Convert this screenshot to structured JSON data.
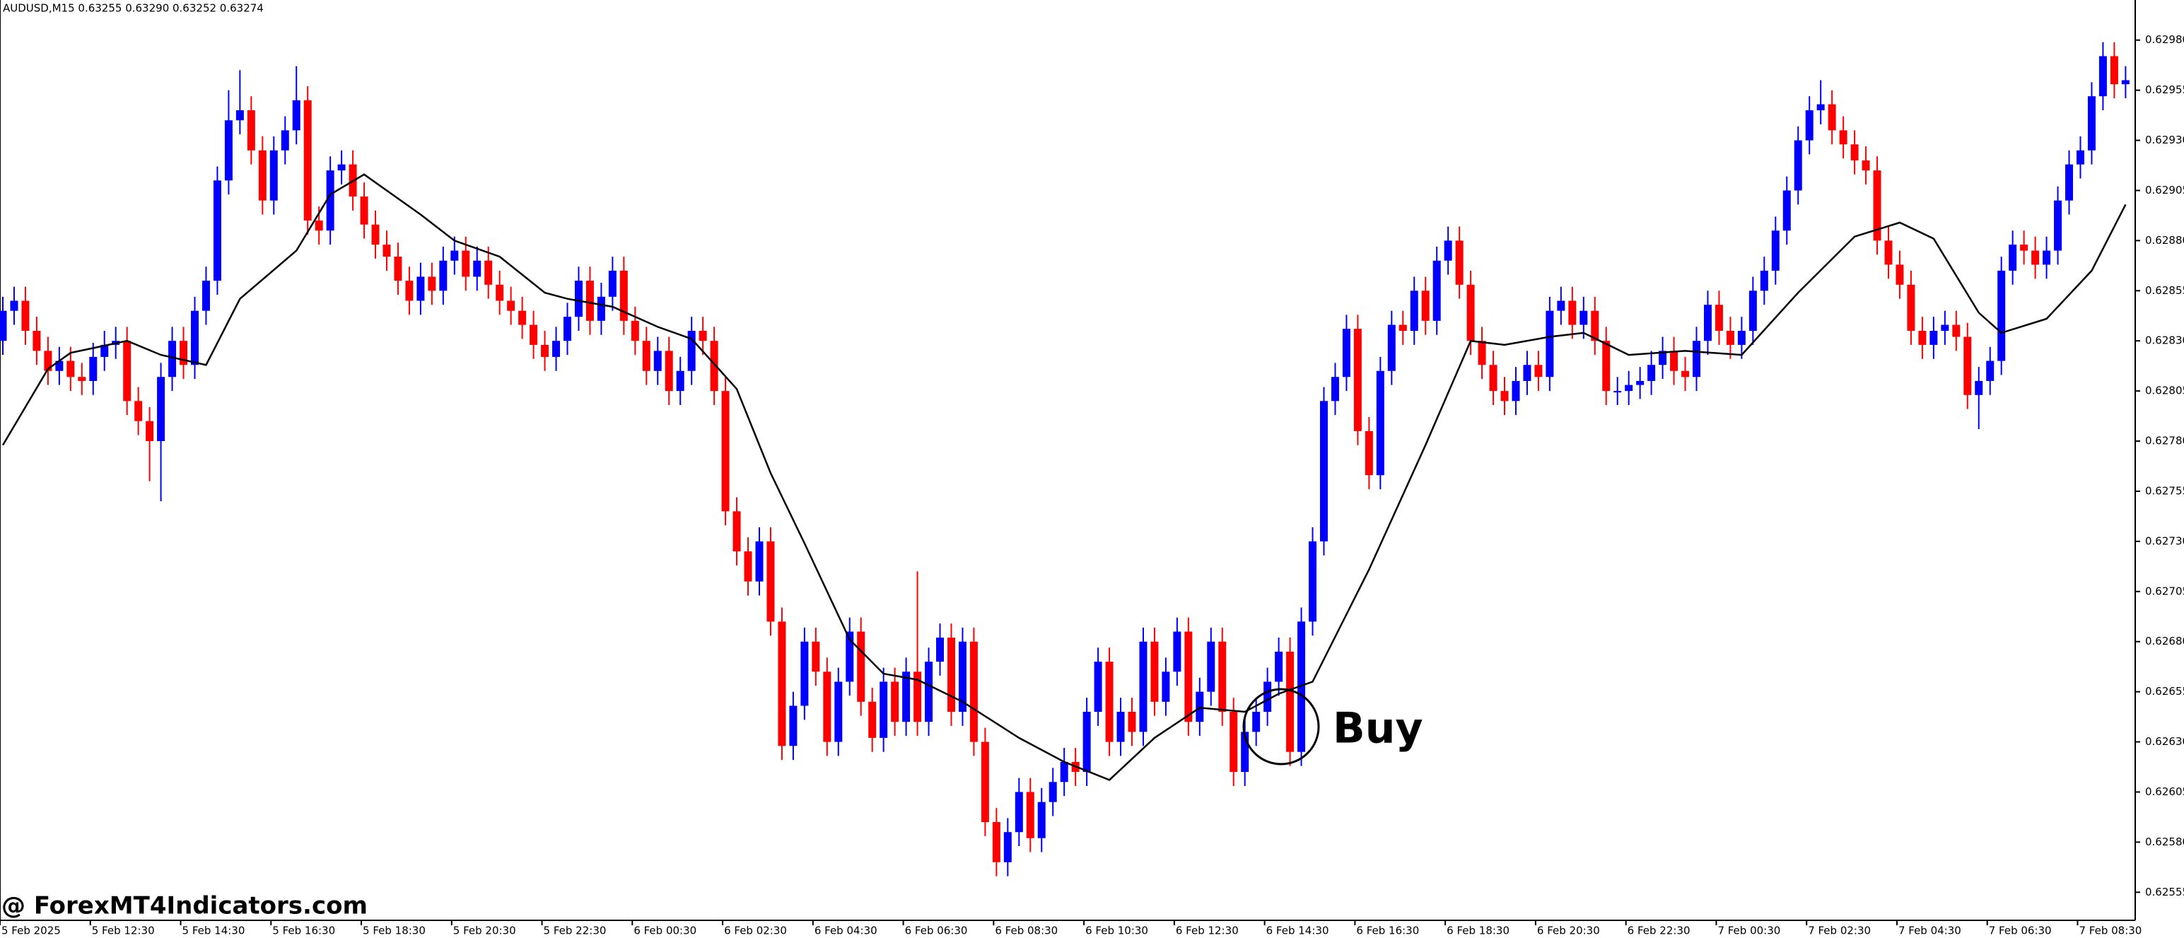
{
  "chart_data": {
    "type": "candlestick",
    "title": "AUDUSD,M15  0.63255 0.63290 0.63252 0.63274",
    "annotation": "Buy",
    "watermark": "@ ForexMT4Indicators.com",
    "up_color": "#0000ff",
    "down_color": "#ff0000",
    "ylim": [
      0.62541,
      0.63
    ],
    "yticks": [
      {
        "value": 0.6298,
        "label": "0.62980"
      },
      {
        "value": 0.62955,
        "label": "0.62955"
      },
      {
        "value": 0.6293,
        "label": "0.62930"
      },
      {
        "value": 0.62905,
        "label": "0.62905"
      },
      {
        "value": 0.6288,
        "label": "0.62880"
      },
      {
        "value": 0.62855,
        "label": "0.62855"
      },
      {
        "value": 0.6283,
        "label": "0.62830"
      },
      {
        "value": 0.62805,
        "label": "0.62805"
      },
      {
        "value": 0.6278,
        "label": "0.62780"
      },
      {
        "value": 0.62755,
        "label": "0.62755"
      },
      {
        "value": 0.6273,
        "label": "0.62730"
      },
      {
        "value": 0.62705,
        "label": "0.62705"
      },
      {
        "value": 0.6268,
        "label": "0.62680"
      },
      {
        "value": 0.62655,
        "label": "0.62655"
      },
      {
        "value": 0.6263,
        "label": "0.62630"
      },
      {
        "value": 0.62605,
        "label": "0.62605"
      },
      {
        "value": 0.6258,
        "label": "0.62580"
      },
      {
        "value": 0.62555,
        "label": "0.62555"
      }
    ],
    "categories": [
      "5 Feb 2025",
      null,
      null,
      null,
      null,
      null,
      null,
      null,
      "5 Feb 12:30",
      null,
      null,
      null,
      null,
      null,
      null,
      null,
      "5 Feb 14:30",
      null,
      null,
      null,
      null,
      null,
      null,
      null,
      "5 Feb 16:30",
      null,
      null,
      null,
      null,
      null,
      null,
      null,
      "5 Feb 18:30",
      null,
      null,
      null,
      null,
      null,
      null,
      null,
      "5 Feb 20:30",
      null,
      null,
      null,
      null,
      null,
      null,
      null,
      "5 Feb 22:30",
      null,
      null,
      null,
      null,
      null,
      null,
      null,
      "6 Feb 00:30",
      null,
      null,
      null,
      null,
      null,
      null,
      null,
      "6 Feb 02:30",
      null,
      null,
      null,
      null,
      null,
      null,
      null,
      "6 Feb 04:30",
      null,
      null,
      null,
      null,
      null,
      null,
      null,
      "6 Feb 06:30",
      null,
      null,
      null,
      null,
      null,
      null,
      null,
      "6 Feb 08:30",
      null,
      null,
      null,
      null,
      null,
      null,
      null,
      "6 Feb 10:30",
      null,
      null,
      null,
      null,
      null,
      null,
      null,
      "6 Feb 12:30",
      null,
      null,
      null,
      null,
      null,
      null,
      null,
      "6 Feb 14:30",
      null,
      null,
      null,
      null,
      null,
      null,
      null,
      "6 Feb 16:30",
      null,
      null,
      null,
      null,
      null,
      null,
      null,
      "6 Feb 18:30",
      null,
      null,
      null,
      null,
      null,
      null,
      null,
      "6 Feb 20:30",
      null,
      null,
      null,
      null,
      null,
      null,
      null,
      "6 Feb 22:30",
      null,
      null,
      null,
      null,
      null,
      null,
      null,
      "7 Feb 00:30",
      null,
      null,
      null,
      null,
      null,
      null,
      null,
      "7 Feb 02:30",
      null,
      null,
      null,
      null,
      null,
      null,
      null,
      "7 Feb 04:30",
      null,
      null,
      null,
      null,
      null,
      null,
      null,
      "7 Feb 06:30",
      null,
      null,
      null,
      null,
      null,
      null,
      null,
      "7 Feb 08:30",
      null,
      null,
      null,
      null
    ],
    "open": [
      0.6283,
      0.62845,
      0.6285,
      0.62835,
      0.62825,
      0.62815,
      0.6282,
      0.62812,
      0.6281,
      0.62822,
      0.62828,
      0.6283,
      0.628,
      0.6279,
      0.6278,
      0.62812,
      0.6283,
      0.62818,
      0.62845,
      0.6286,
      0.6291,
      0.6294,
      0.62945,
      0.62925,
      0.629,
      0.62925,
      0.62935,
      0.6295,
      0.6289,
      0.62885,
      0.62915,
      0.62918,
      0.62902,
      0.62888,
      0.62878,
      0.62872,
      0.6286,
      0.6285,
      0.62862,
      0.62855,
      0.6287,
      0.62875,
      0.62862,
      0.6287,
      0.62858,
      0.6285,
      0.62845,
      0.62838,
      0.62828,
      0.62822,
      0.6283,
      0.62842,
      0.6286,
      0.6284,
      0.62852,
      0.62865,
      0.6284,
      0.6283,
      0.62815,
      0.62825,
      0.62805,
      0.62815,
      0.62835,
      0.6283,
      0.62805,
      0.62745,
      0.62725,
      0.6271,
      0.6273,
      0.6269,
      0.62628,
      0.62648,
      0.6268,
      0.62665,
      0.6263,
      0.6266,
      0.62685,
      0.6265,
      0.62632,
      0.6266,
      0.6264,
      0.62665,
      0.6264,
      0.6267,
      0.62682,
      0.62645,
      0.6268,
      0.6263,
      0.6259,
      0.6257,
      0.62585,
      0.62605,
      0.62582,
      0.626,
      0.6261,
      0.6262,
      0.62615,
      0.62645,
      0.6267,
      0.6263,
      0.62645,
      0.62635,
      0.6268,
      0.6265,
      0.62665,
      0.62685,
      0.6264,
      0.62655,
      0.6268,
      0.62645,
      0.62615,
      0.62635,
      0.62645,
      0.6266,
      0.62675,
      0.62625,
      0.6269,
      0.6273,
      0.628,
      0.62812,
      0.62836,
      0.62785,
      0.62763,
      0.62815,
      0.62838,
      0.62835,
      0.62855,
      0.6284,
      0.6287,
      0.6288,
      0.62858,
      0.6283,
      0.62818,
      0.62805,
      0.628,
      0.6281,
      0.62818,
      0.62812,
      0.62845,
      0.6285,
      0.62838,
      0.62845,
      0.6283,
      0.62805,
      0.62805,
      0.62808,
      0.6281,
      0.62818,
      0.62825,
      0.62815,
      0.62812,
      0.6283,
      0.62848,
      0.62835,
      0.62828,
      0.62835,
      0.62855,
      0.62865,
      0.62885,
      0.62905,
      0.6293,
      0.62945,
      0.62948,
      0.62935,
      0.62928,
      0.6292,
      0.62915,
      0.6288,
      0.62868,
      0.62858,
      0.62835,
      0.62828,
      0.62835,
      0.62838,
      0.62832,
      0.62803,
      0.6281,
      0.6282,
      0.62865,
      0.62878,
      0.62875,
      0.62868,
      0.62875,
      0.629,
      0.62918,
      0.62925,
      0.62952,
      0.62972,
      0.62958
    ],
    "high": [
      0.62852,
      0.62857,
      0.62857,
      0.62842,
      0.62832,
      0.62827,
      0.62827,
      0.62819,
      0.62829,
      0.62835,
      0.62837,
      0.62837,
      0.62807,
      0.62797,
      0.62819,
      0.62837,
      0.62837,
      0.62852,
      0.62867,
      0.62917,
      0.62955,
      0.62965,
      0.62952,
      0.62932,
      0.62932,
      0.62942,
      0.62967,
      0.62957,
      0.62897,
      0.62922,
      0.62925,
      0.62925,
      0.62909,
      0.62895,
      0.62885,
      0.62879,
      0.62867,
      0.62869,
      0.62869,
      0.62877,
      0.62882,
      0.62882,
      0.62877,
      0.62877,
      0.62865,
      0.62857,
      0.62852,
      0.62845,
      0.62835,
      0.62837,
      0.62849,
      0.62867,
      0.62867,
      0.62859,
      0.62872,
      0.62872,
      0.62847,
      0.62837,
      0.62832,
      0.62832,
      0.62822,
      0.62842,
      0.62842,
      0.62837,
      0.62812,
      0.62752,
      0.62732,
      0.62737,
      0.62737,
      0.62697,
      0.62655,
      0.62687,
      0.62687,
      0.62672,
      0.62667,
      0.62692,
      0.62692,
      0.62657,
      0.62667,
      0.62667,
      0.62672,
      0.62715,
      0.62677,
      0.62689,
      0.62689,
      0.62687,
      0.62687,
      0.62637,
      0.62597,
      0.62592,
      0.62612,
      0.62612,
      0.62607,
      0.62617,
      0.62627,
      0.62627,
      0.62652,
      0.62677,
      0.62677,
      0.62652,
      0.62652,
      0.62687,
      0.62687,
      0.62672,
      0.62692,
      0.62692,
      0.62662,
      0.62687,
      0.62687,
      0.62652,
      0.62642,
      0.62652,
      0.62667,
      0.62682,
      0.62682,
      0.62697,
      0.62737,
      0.62807,
      0.62819,
      0.62843,
      0.62843,
      0.62792,
      0.62822,
      0.62845,
      0.62845,
      0.62862,
      0.62862,
      0.62877,
      0.62887,
      0.62887,
      0.62865,
      0.62837,
      0.62825,
      0.62812,
      0.62817,
      0.62825,
      0.62825,
      0.62852,
      0.62857,
      0.62857,
      0.62852,
      0.62852,
      0.62837,
      0.62812,
      0.62815,
      0.62817,
      0.62825,
      0.62832,
      0.62832,
      0.62822,
      0.62837,
      0.62855,
      0.62855,
      0.62842,
      0.62842,
      0.62862,
      0.62872,
      0.62892,
      0.62912,
      0.62937,
      0.62952,
      0.6296,
      0.62955,
      0.62942,
      0.62935,
      0.62927,
      0.62922,
      0.62887,
      0.62875,
      0.62865,
      0.62842,
      0.62842,
      0.62845,
      0.62845,
      0.62839,
      0.62817,
      0.62827,
      0.62872,
      0.62885,
      0.62885,
      0.62882,
      0.62882,
      0.62907,
      0.62925,
      0.62932,
      0.62959,
      0.62979,
      0.62979,
      0.62967
    ],
    "low": [
      0.62823,
      0.62838,
      0.62828,
      0.62818,
      0.62808,
      0.62808,
      0.62805,
      0.62803,
      0.62803,
      0.62815,
      0.62821,
      0.62793,
      0.62783,
      0.6276,
      0.6275,
      0.62805,
      0.62811,
      0.62811,
      0.62838,
      0.62853,
      0.62903,
      0.62933,
      0.62918,
      0.62893,
      0.62893,
      0.62918,
      0.62928,
      0.62883,
      0.62878,
      0.62878,
      0.62908,
      0.62895,
      0.62881,
      0.62871,
      0.62865,
      0.62853,
      0.62843,
      0.62843,
      0.62848,
      0.62848,
      0.62863,
      0.62855,
      0.62855,
      0.62851,
      0.62843,
      0.62838,
      0.62831,
      0.62821,
      0.62815,
      0.62815,
      0.62823,
      0.62835,
      0.62833,
      0.62833,
      0.62845,
      0.62833,
      0.62823,
      0.62808,
      0.62808,
      0.62798,
      0.62798,
      0.62808,
      0.62823,
      0.62798,
      0.62738,
      0.62718,
      0.62703,
      0.62703,
      0.62683,
      0.62621,
      0.62621,
      0.62641,
      0.62658,
      0.62623,
      0.62623,
      0.62653,
      0.62643,
      0.62625,
      0.62625,
      0.62633,
      0.62633,
      0.62633,
      0.62633,
      0.62663,
      0.62638,
      0.62638,
      0.62623,
      0.62583,
      0.62563,
      0.62563,
      0.62578,
      0.62575,
      0.62575,
      0.62593,
      0.62603,
      0.62608,
      0.62608,
      0.62638,
      0.62623,
      0.62623,
      0.62628,
      0.62628,
      0.62643,
      0.62643,
      0.62658,
      0.62633,
      0.62633,
      0.62648,
      0.62638,
      0.62608,
      0.62608,
      0.62628,
      0.62638,
      0.62653,
      0.62618,
      0.62618,
      0.62683,
      0.62723,
      0.62793,
      0.62805,
      0.62778,
      0.62756,
      0.62756,
      0.62808,
      0.62828,
      0.62828,
      0.62833,
      0.62833,
      0.62863,
      0.62851,
      0.62823,
      0.62811,
      0.62798,
      0.62793,
      0.62793,
      0.62803,
      0.62805,
      0.62805,
      0.62838,
      0.62831,
      0.62831,
      0.62823,
      0.62798,
      0.62798,
      0.62798,
      0.62801,
      0.62803,
      0.62811,
      0.62808,
      0.62805,
      0.62805,
      0.62823,
      0.62828,
      0.62821,
      0.62821,
      0.62828,
      0.62848,
      0.62858,
      0.62878,
      0.62898,
      0.62923,
      0.62938,
      0.62928,
      0.62921,
      0.62913,
      0.62908,
      0.62873,
      0.62861,
      0.62851,
      0.62828,
      0.62821,
      0.62821,
      0.62828,
      0.62825,
      0.62796,
      0.62786,
      0.62803,
      0.62813,
      0.62858,
      0.62868,
      0.62861,
      0.62861,
      0.62868,
      0.62893,
      0.62911,
      0.62918,
      0.62945,
      0.62951,
      0.62951
    ],
    "close": [
      0.62845,
      0.6285,
      0.62835,
      0.62825,
      0.62815,
      0.6282,
      0.62812,
      0.6281,
      0.62822,
      0.62828,
      0.6283,
      0.628,
      0.6279,
      0.6278,
      0.62812,
      0.6283,
      0.62818,
      0.62845,
      0.6286,
      0.6291,
      0.6294,
      0.62945,
      0.62925,
      0.629,
      0.62925,
      0.62935,
      0.6295,
      0.6289,
      0.62885,
      0.62915,
      0.62918,
      0.62902,
      0.62888,
      0.62878,
      0.62872,
      0.6286,
      0.6285,
      0.62862,
      0.62855,
      0.6287,
      0.62875,
      0.62862,
      0.6287,
      0.62858,
      0.6285,
      0.62845,
      0.62838,
      0.62828,
      0.62822,
      0.6283,
      0.62842,
      0.6286,
      0.6284,
      0.62852,
      0.62865,
      0.6284,
      0.6283,
      0.62815,
      0.62825,
      0.62805,
      0.62815,
      0.62835,
      0.6283,
      0.62805,
      0.62745,
      0.62725,
      0.6271,
      0.6273,
      0.6269,
      0.62628,
      0.62648,
      0.6268,
      0.62665,
      0.6263,
      0.6266,
      0.62685,
      0.6265,
      0.62632,
      0.6266,
      0.6264,
      0.62665,
      0.6264,
      0.6267,
      0.62682,
      0.62645,
      0.6268,
      0.6263,
      0.6259,
      0.6257,
      0.62585,
      0.62605,
      0.62582,
      0.626,
      0.6261,
      0.6262,
      0.62615,
      0.62645,
      0.6267,
      0.6263,
      0.62645,
      0.62635,
      0.6268,
      0.6265,
      0.62665,
      0.62685,
      0.6264,
      0.62655,
      0.6268,
      0.62645,
      0.62615,
      0.62635,
      0.62645,
      0.6266,
      0.62675,
      0.62625,
      0.6269,
      0.6273,
      0.628,
      0.62812,
      0.62836,
      0.62785,
      0.62763,
      0.62815,
      0.62838,
      0.62835,
      0.62855,
      0.6284,
      0.6287,
      0.6288,
      0.62858,
      0.6283,
      0.62818,
      0.62805,
      0.628,
      0.6281,
      0.62818,
      0.62812,
      0.62845,
      0.6285,
      0.62838,
      0.62845,
      0.6283,
      0.62805,
      0.62805,
      0.62808,
      0.6281,
      0.62818,
      0.62825,
      0.62815,
      0.62812,
      0.6283,
      0.62848,
      0.62835,
      0.62828,
      0.62835,
      0.62855,
      0.62865,
      0.62885,
      0.62905,
      0.6293,
      0.62945,
      0.62948,
      0.62935,
      0.62928,
      0.6292,
      0.62915,
      0.6288,
      0.62868,
      0.62858,
      0.62835,
      0.62828,
      0.62835,
      0.62838,
      0.62832,
      0.62803,
      0.6281,
      0.6282,
      0.62865,
      0.62878,
      0.62875,
      0.62868,
      0.62875,
      0.629,
      0.62918,
      0.62925,
      0.62952,
      0.62972,
      0.62958,
      0.6296
    ],
    "ma": {
      "color": "#000000",
      "x": [
        0,
        4,
        6,
        11,
        14,
        18,
        21,
        26,
        29,
        32,
        37,
        40,
        44,
        48,
        50,
        54,
        58,
        61,
        65,
        68,
        71,
        75,
        78,
        81,
        85,
        90,
        94,
        98,
        102,
        106,
        110,
        113,
        116,
        121,
        126,
        130,
        133,
        137,
        140,
        144,
        149,
        154,
        159,
        164,
        168,
        171,
        175,
        177,
        181,
        185,
        188
      ],
      "values": [
        0.62778,
        0.62816,
        0.62824,
        0.6283,
        0.62823,
        0.62818,
        0.62851,
        0.62875,
        0.62903,
        0.62913,
        0.62893,
        0.6288,
        0.62872,
        0.62854,
        0.62851,
        0.62847,
        0.62837,
        0.62831,
        0.62806,
        0.62764,
        0.62729,
        0.62681,
        0.62664,
        0.62661,
        0.6265,
        0.62632,
        0.6262,
        0.62611,
        0.62632,
        0.62647,
        0.62645,
        0.62654,
        0.6266,
        0.62716,
        0.62778,
        0.6283,
        0.62828,
        0.62832,
        0.62834,
        0.62823,
        0.62825,
        0.62823,
        0.62854,
        0.62882,
        0.62889,
        0.62881,
        0.62844,
        0.62834,
        0.62841,
        0.62865,
        0.62898
      ]
    }
  }
}
